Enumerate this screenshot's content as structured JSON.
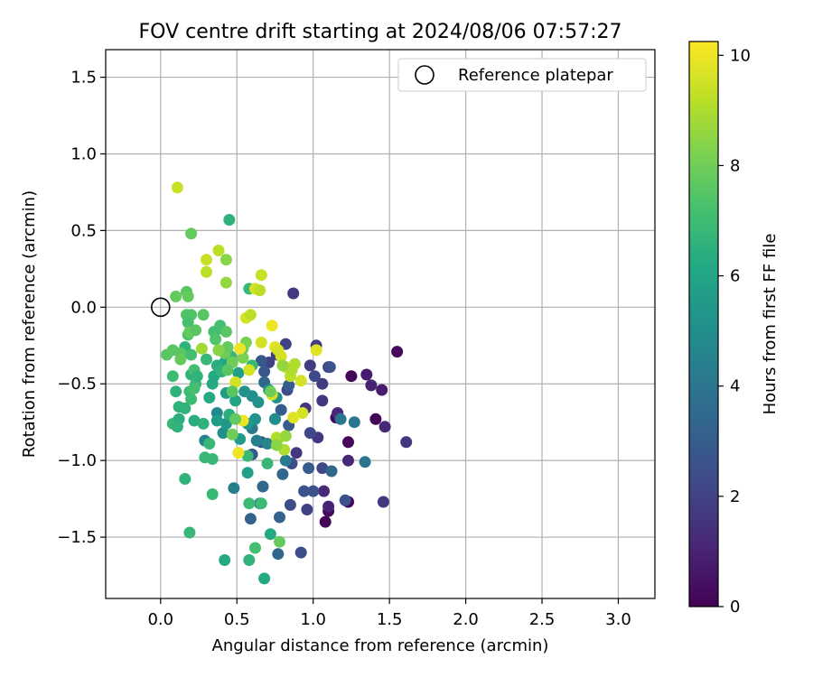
{
  "chart_data": {
    "type": "scatter",
    "title": "FOV centre drift starting at 2024/08/06 07:57:27",
    "xlabel": "Angular distance from reference (arcmin)",
    "ylabel": "Rotation from reference (arcmin)",
    "xlim": [
      -0.36,
      3.24
    ],
    "ylim": [
      -1.9,
      1.68
    ],
    "xticks": [
      0.0,
      0.5,
      1.0,
      1.5,
      2.0,
      2.5,
      3.0
    ],
    "xtick_labels": [
      "0.0",
      "0.5",
      "1.0",
      "1.5",
      "2.0",
      "2.5",
      "3.0"
    ],
    "yticks": [
      -1.5,
      -1.0,
      -0.5,
      0.0,
      0.5,
      1.0,
      1.5
    ],
    "ytick_labels": [
      "−1.5",
      "−1.0",
      "−0.5",
      "0.0",
      "0.5",
      "1.0",
      "1.5"
    ],
    "grid": true,
    "legend": {
      "position": "top-right",
      "entries": [
        {
          "label": "Reference platepar",
          "marker": "open-circle"
        }
      ]
    },
    "reference_point": {
      "x": 0.0,
      "y": 0.0
    },
    "colorbar": {
      "label": "Hours from first FF file",
      "colormap": "viridis",
      "range": [
        0,
        10.25
      ],
      "ticks": [
        0,
        2,
        4,
        6,
        8,
        10
      ],
      "tick_labels": [
        "0",
        "2",
        "4",
        "6",
        "8",
        "10"
      ]
    },
    "series": [
      {
        "points": [
          [
            1.25,
            -0.45,
            0.1
          ],
          [
            1.41,
            -0.73,
            0.1
          ],
          [
            1.08,
            -1.4,
            0.1
          ],
          [
            1.23,
            -1.27,
            0.1
          ],
          [
            1.55,
            -0.29,
            0.2
          ],
          [
            1.15,
            -0.72,
            0.2
          ],
          [
            1.23,
            -0.88,
            0.2
          ],
          [
            1.1,
            -1.33,
            0.2
          ],
          [
            1.35,
            -0.44,
            0.8
          ],
          [
            1.45,
            -0.54,
            0.8
          ],
          [
            1.38,
            -0.51,
            1.0
          ],
          [
            1.47,
            -0.78,
            1.2
          ],
          [
            1.16,
            -0.69,
            1.2
          ],
          [
            1.07,
            -1.2,
            1.2
          ],
          [
            1.23,
            -1.0,
            1.2
          ],
          [
            1.1,
            -1.3,
            1.0
          ],
          [
            1.46,
            -1.27,
            1.6
          ],
          [
            1.61,
            -0.88,
            1.6
          ],
          [
            1.1,
            -0.39,
            1.8
          ],
          [
            1.02,
            -0.25,
            1.8
          ],
          [
            0.87,
            0.09,
            1.6
          ],
          [
            0.89,
            -0.95,
            1.6
          ],
          [
            1.06,
            -0.61,
            1.6
          ],
          [
            1.03,
            -0.85,
            1.6
          ],
          [
            0.95,
            -0.66,
            1.6
          ],
          [
            0.98,
            -0.38,
            1.8
          ],
          [
            1.06,
            -0.5,
            1.8
          ],
          [
            0.96,
            -1.32,
            2.0
          ],
          [
            0.82,
            -0.24,
            2.0
          ],
          [
            0.76,
            -0.31,
            2.0
          ],
          [
            0.71,
            -0.36,
            2.0
          ],
          [
            1.01,
            -0.45,
            2.2
          ],
          [
            1.06,
            -1.05,
            2.2
          ],
          [
            0.83,
            -0.54,
            2.2
          ],
          [
            0.98,
            -0.82,
            2.2
          ],
          [
            0.86,
            -1.02,
            2.4
          ],
          [
            0.66,
            -0.88,
            2.4
          ],
          [
            0.92,
            -1.6,
            2.4
          ],
          [
            0.85,
            -1.29,
            2.4
          ],
          [
            1.0,
            -1.2,
            2.6
          ],
          [
            0.94,
            -1.2,
            2.6
          ],
          [
            1.21,
            -1.26,
            2.6
          ],
          [
            1.11,
            -0.39,
            2.6
          ],
          [
            0.68,
            -0.42,
            2.8
          ],
          [
            0.6,
            -0.96,
            2.8
          ],
          [
            0.66,
            -0.35,
            2.8
          ],
          [
            0.84,
            -0.51,
            3.0
          ],
          [
            0.75,
            -0.73,
            3.0
          ],
          [
            0.79,
            -0.67,
            3.0
          ],
          [
            0.84,
            -0.77,
            3.0
          ],
          [
            0.97,
            -1.05,
            3.0
          ],
          [
            0.59,
            -1.38,
            3.2
          ],
          [
            0.78,
            -1.37,
            3.2
          ],
          [
            0.68,
            -0.49,
            3.4
          ],
          [
            0.67,
            -1.17,
            3.4
          ],
          [
            0.8,
            -1.09,
            3.4
          ],
          [
            0.77,
            -1.61,
            3.4
          ],
          [
            1.12,
            -1.07,
            3.4
          ],
          [
            1.18,
            -0.73,
            4.0
          ],
          [
            1.34,
            -1.01,
            4.0
          ],
          [
            1.27,
            -0.75,
            4.0
          ],
          [
            0.82,
            -1.0,
            4.2
          ],
          [
            0.6,
            -0.79,
            4.2
          ],
          [
            0.63,
            -0.87,
            4.4
          ],
          [
            0.48,
            -1.18,
            4.4
          ],
          [
            0.65,
            -1.28,
            4.6
          ],
          [
            0.7,
            -0.89,
            4.6
          ],
          [
            0.29,
            -0.87,
            4.6
          ],
          [
            0.37,
            -0.69,
            4.8
          ],
          [
            0.41,
            -0.82,
            5.0
          ],
          [
            0.71,
            -0.54,
            5.0
          ],
          [
            0.6,
            -0.58,
            5.0
          ],
          [
            0.75,
            -0.73,
            5.0
          ],
          [
            0.76,
            -0.59,
            5.2
          ],
          [
            0.62,
            -0.73,
            5.2
          ],
          [
            0.55,
            -0.55,
            5.2
          ],
          [
            0.64,
            -0.62,
            5.2
          ],
          [
            0.57,
            -0.76,
            5.4
          ],
          [
            0.43,
            -0.76,
            5.4
          ],
          [
            0.52,
            -0.86,
            5.6
          ],
          [
            0.57,
            -1.08,
            5.8
          ],
          [
            0.43,
            -0.56,
            5.6
          ],
          [
            0.37,
            -0.74,
            5.6
          ],
          [
            0.51,
            -0.43,
            5.8
          ],
          [
            0.49,
            -0.61,
            6.0
          ],
          [
            0.42,
            -0.36,
            6.0
          ],
          [
            0.34,
            -0.5,
            6.2
          ],
          [
            0.35,
            -0.45,
            6.2
          ],
          [
            0.32,
            -0.59,
            6.2
          ],
          [
            0.37,
            -0.38,
            6.4
          ],
          [
            0.45,
            -0.7,
            6.4
          ],
          [
            0.38,
            -0.28,
            6.4
          ],
          [
            0.39,
            -0.14,
            6.4
          ],
          [
            0.4,
            -0.42,
            6.6
          ],
          [
            0.45,
            0.57,
            6.6
          ],
          [
            0.28,
            -0.76,
            6.6
          ],
          [
            0.3,
            -0.34,
            6.8
          ],
          [
            0.46,
            -0.32,
            6.8
          ],
          [
            0.32,
            -0.89,
            6.8
          ],
          [
            0.34,
            -0.99,
            6.8
          ],
          [
            0.29,
            -0.98,
            6.8
          ],
          [
            0.34,
            -1.22,
            6.8
          ],
          [
            0.2,
            -0.44,
            6.6
          ],
          [
            0.16,
            -0.26,
            6.6
          ],
          [
            0.23,
            -0.5,
            6.8
          ],
          [
            0.58,
            0.12,
            6.8
          ],
          [
            0.6,
            -0.38,
            6.8
          ],
          [
            0.57,
            -0.97,
            6.8
          ],
          [
            0.58,
            -1.28,
            7.0
          ],
          [
            0.66,
            -1.28,
            7.0
          ],
          [
            0.7,
            -1.02,
            6.8
          ],
          [
            0.62,
            -1.57,
            7.2
          ],
          [
            0.58,
            -1.65,
            6.6
          ],
          [
            0.42,
            -1.65,
            6.2
          ],
          [
            0.68,
            -1.77,
            6.2
          ],
          [
            0.72,
            -1.48,
            6.2
          ],
          [
            0.16,
            -1.12,
            6.6
          ],
          [
            0.19,
            -1.47,
            6.8
          ],
          [
            0.08,
            -0.76,
            6.8
          ],
          [
            0.12,
            -0.73,
            6.4
          ],
          [
            0.11,
            -0.78,
            6.6
          ],
          [
            0.12,
            -0.65,
            6.6
          ],
          [
            0.16,
            -0.66,
            6.6
          ],
          [
            0.1,
            -0.55,
            6.6
          ],
          [
            0.08,
            -0.45,
            7.0
          ],
          [
            0.19,
            -0.55,
            7.0
          ],
          [
            0.2,
            -0.6,
            7.0
          ],
          [
            0.22,
            -0.53,
            7.2
          ],
          [
            0.22,
            -0.41,
            7.2
          ],
          [
            0.2,
            -0.31,
            7.2
          ],
          [
            0.17,
            -0.05,
            7.4
          ],
          [
            0.2,
            -0.05,
            7.4
          ],
          [
            0.18,
            -0.1,
            7.2
          ],
          [
            0.18,
            -0.18,
            7.4
          ],
          [
            0.08,
            -0.28,
            7.6
          ],
          [
            0.13,
            -0.3,
            7.6
          ],
          [
            0.04,
            -0.31,
            7.6
          ],
          [
            0.13,
            -0.34,
            7.8
          ],
          [
            0.19,
            -0.16,
            7.8
          ],
          [
            0.23,
            -0.15,
            7.6
          ],
          [
            0.28,
            -0.05,
            7.6
          ],
          [
            0.35,
            -0.16,
            7.2
          ],
          [
            0.36,
            -0.21,
            7.4
          ],
          [
            0.39,
            -0.12,
            7.2
          ],
          [
            0.43,
            -0.16,
            7.6
          ],
          [
            0.42,
            -0.3,
            8.0
          ],
          [
            0.47,
            -0.36,
            8.0
          ],
          [
            0.44,
            -0.41,
            7.6
          ],
          [
            0.44,
            -0.26,
            7.8
          ],
          [
            0.54,
            -0.33,
            8.2
          ],
          [
            0.54,
            -0.27,
            8.0
          ],
          [
            0.56,
            -0.23,
            8.2
          ],
          [
            0.17,
            0.1,
            7.6
          ],
          [
            0.18,
            0.07,
            7.8
          ],
          [
            0.1,
            0.07,
            7.8
          ],
          [
            0.2,
            0.48,
            7.8
          ],
          [
            0.43,
            0.31,
            8.4
          ],
          [
            0.43,
            0.16,
            8.6
          ],
          [
            0.38,
            0.37,
            9.2
          ],
          [
            0.3,
            0.23,
            9.2
          ],
          [
            0.3,
            0.31,
            9.4
          ],
          [
            0.66,
            0.21,
            9.4
          ],
          [
            0.62,
            0.12,
            9.6
          ],
          [
            0.65,
            0.11,
            9.2
          ],
          [
            0.56,
            -0.07,
            9.6
          ],
          [
            0.59,
            -0.05,
            9.2
          ],
          [
            0.52,
            -0.27,
            10.0
          ],
          [
            0.58,
            -0.41,
            9.6
          ],
          [
            0.66,
            -0.23,
            9.6
          ],
          [
            0.73,
            -0.12,
            10.0
          ],
          [
            0.75,
            -0.26,
            9.8
          ],
          [
            0.77,
            -0.28,
            9.6
          ],
          [
            0.82,
            -0.39,
            9.4
          ],
          [
            0.85,
            -0.45,
            9.2
          ],
          [
            0.88,
            -0.37,
            9.0
          ],
          [
            0.79,
            -0.32,
            9.6
          ],
          [
            0.73,
            -0.57,
            9.6
          ],
          [
            0.92,
            -0.48,
            9.6
          ],
          [
            0.93,
            -0.69,
            9.6
          ],
          [
            0.87,
            -0.72,
            9.8
          ],
          [
            0.86,
            -0.41,
            9.0
          ],
          [
            1.02,
            -0.28,
            9.8
          ],
          [
            0.76,
            -0.85,
            9.2
          ],
          [
            0.77,
            -0.86,
            9.0
          ],
          [
            0.81,
            -0.93,
            9.0
          ],
          [
            0.82,
            -0.84,
            8.6
          ],
          [
            0.76,
            -0.9,
            8.4
          ],
          [
            0.72,
            -0.55,
            8.0
          ],
          [
            0.8,
            -0.38,
            8.6
          ],
          [
            0.49,
            -0.49,
            9.6
          ],
          [
            0.51,
            -0.95,
            10.0
          ],
          [
            0.54,
            -0.74,
            10.0
          ],
          [
            0.11,
            0.78,
            9.4
          ],
          [
            0.27,
            -0.27,
            8.8
          ],
          [
            0.38,
            -0.28,
            8.4
          ],
          [
            0.49,
            -0.73,
            7.8
          ],
          [
            0.47,
            -0.83,
            8.0
          ],
          [
            0.47,
            -0.55,
            7.6
          ],
          [
            0.24,
            -0.45,
            6.6
          ],
          [
            0.22,
            -0.74,
            6.4
          ],
          [
            0.78,
            -1.53,
            7.8
          ]
        ]
      }
    ]
  }
}
